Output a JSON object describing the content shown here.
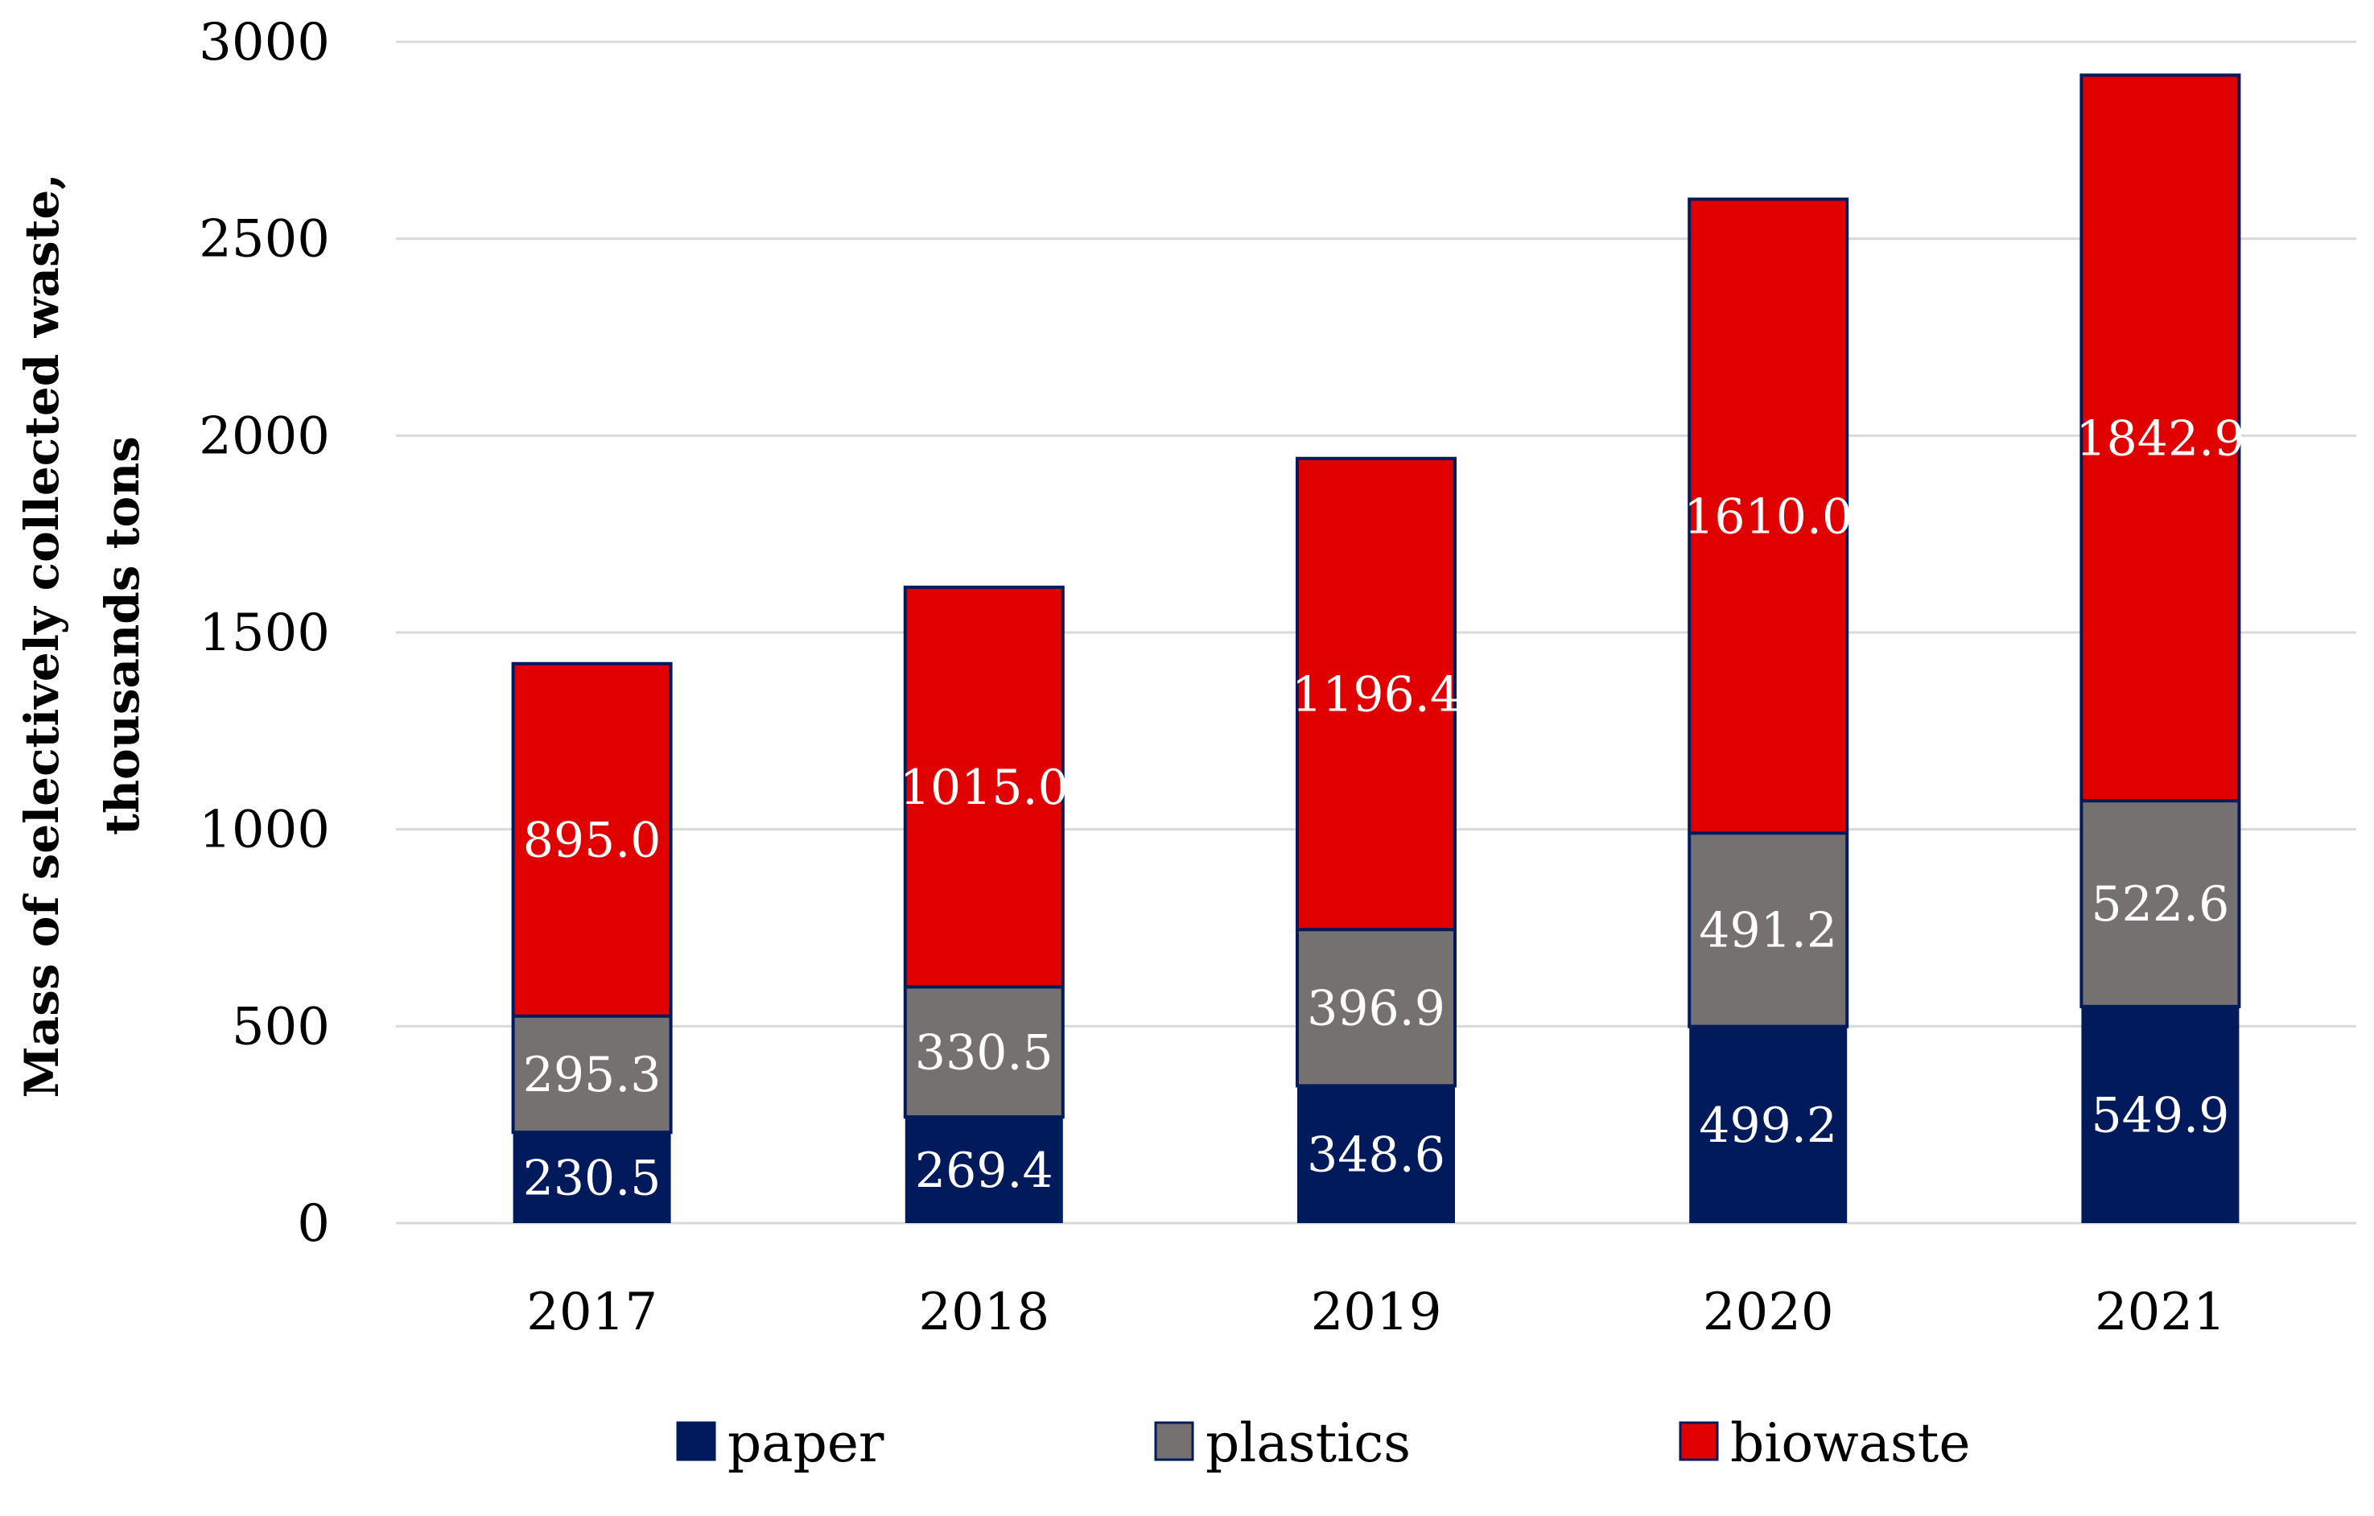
{
  "chart_data": {
    "type": "bar",
    "stacked": true,
    "title": "",
    "xlabel": "",
    "ylabel": "Mass of selectively collected waste, thousands tons",
    "ylabel_lines": [
      "Mass of selectively collected waste,",
      "thousands tons"
    ],
    "ylim": [
      0,
      3000
    ],
    "yticks": [
      0,
      500,
      1000,
      1500,
      2000,
      2500,
      3000
    ],
    "grid": true,
    "legend_position": "bottom",
    "categories": [
      "2017",
      "2018",
      "2019",
      "2020",
      "2021"
    ],
    "series": [
      {
        "name": "paper",
        "color": "#001a5c",
        "values": [
          230.5,
          269.4,
          348.6,
          499.2,
          549.9
        ],
        "labels": [
          "230.5",
          "269.4",
          "348.6",
          "499.2",
          "549.9"
        ]
      },
      {
        "name": "plastics",
        "color": "#767171",
        "values": [
          295.3,
          330.5,
          396.9,
          491.2,
          522.6
        ],
        "labels": [
          "295.3",
          "330.5",
          "396.9",
          "491.2",
          "522.6"
        ]
      },
      {
        "name": "biowaste",
        "color": "#e00000",
        "values": [
          895.0,
          1015.0,
          1196.4,
          1610.0,
          1842.9
        ],
        "labels": [
          "895.0",
          "1015.0",
          "1196.4",
          "1610.0",
          "1842.9"
        ]
      }
    ],
    "colors": {
      "grid": "#d9d9d9",
      "bar_outline": "#001a5c",
      "data_label": "#ffffff",
      "text": "#000000"
    }
  }
}
